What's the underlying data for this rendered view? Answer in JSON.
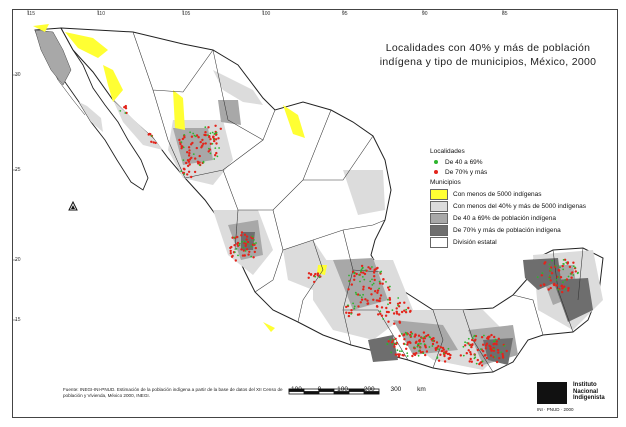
{
  "title": {
    "line1": "Localidades con 40% y más de población",
    "line2": "indígena y tipo de municipios, México, 2000"
  },
  "legend": {
    "localidades_header": "Localidades",
    "localidades": [
      {
        "label": "De 40 a 69%",
        "color": "#2db52d"
      },
      {
        "label": "De 70% y más",
        "color": "#e3241b"
      }
    ],
    "municipios_header": "Municipios",
    "municipios": [
      {
        "label": "Con menos de 5000 indígenas",
        "color": "#ffff33"
      },
      {
        "label": "Con menos del 40% y más de 5000 indígenas",
        "color": "#dcdcdc"
      },
      {
        "label": "De 40 a 69% de población indígena",
        "color": "#a8a8a8"
      },
      {
        "label": "De 70% y más de población indígena",
        "color": "#6e6e6e"
      },
      {
        "label": "División estatal",
        "color": "#ffffff"
      }
    ]
  },
  "scale": {
    "labels": [
      "100",
      "0",
      "100",
      "200",
      "300"
    ],
    "unit": "km"
  },
  "source": {
    "text": "Fuente: INEGI-INI-PNUD. Estimación de la población indígena a partir de la base de datos del XII Censo de población y Vivienda, México 2000, INEGI."
  },
  "institution": {
    "line1": "Instituto",
    "line2": "Nacional",
    "line3": "Indigenista",
    "sub": "INI · PNUD · 2000"
  },
  "north_icon": "north-arrow",
  "lon_ticks": [
    "115",
    "110",
    "105",
    "100",
    "95",
    "90",
    "85"
  ],
  "lat_ticks": [
    "30",
    "25",
    "20",
    "15"
  ],
  "colors": {
    "locality_high": "#e3241b",
    "locality_mid": "#2db52d",
    "land": "#ffffff",
    "border": "#222222"
  }
}
